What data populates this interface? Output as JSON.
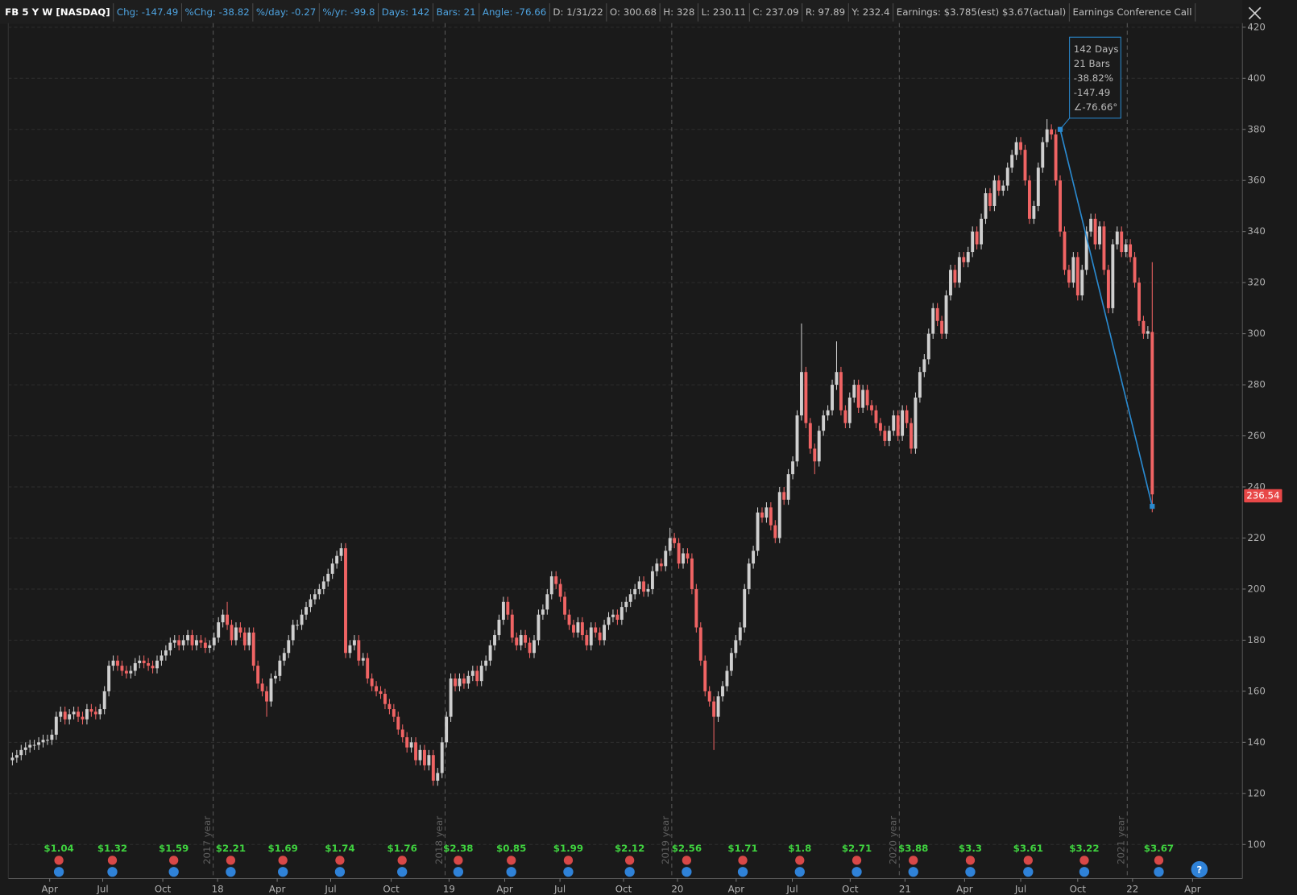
{
  "header": {
    "symbol": "FB 5 Y W [NASDAQ]",
    "study_items": [
      "Chg: -147.49",
      "%Chg: -38.82",
      "%/day: -0.27",
      "%/yr: -99.8",
      "Days: 142",
      "Bars: 21",
      "Angle: -76.66"
    ],
    "bar_items": [
      "D: 1/31/22",
      "O: 300.68",
      "H: 328",
      "L: 230.11",
      "C: 237.09",
      "R: 97.89",
      "Y: 232.4",
      "Earnings: $3.785(est) $3.67(actual)",
      "Earnings Conference Call"
    ]
  },
  "help_button": "?",
  "chart_data": {
    "type": "candlestick",
    "up_color": "#cfcfcf",
    "down_color": "#f06464",
    "grid": true,
    "ylim": [
      86.7,
      421.6
    ],
    "yticks": [
      100,
      120,
      140,
      160,
      180,
      200,
      220,
      240,
      260,
      280,
      300,
      320,
      340,
      360,
      380,
      400,
      420
    ],
    "xlim": [
      -1,
      281
    ],
    "xticks": [
      {
        "value": 8.5,
        "label": "Apr"
      },
      {
        "value": 20.6,
        "label": "Jul"
      },
      {
        "value": 34.3,
        "label": "Oct"
      },
      {
        "value": 46.8,
        "label": "18"
      },
      {
        "value": 60.4,
        "label": "Apr"
      },
      {
        "value": 72.6,
        "label": "Jul"
      },
      {
        "value": 86.4,
        "label": "Oct"
      },
      {
        "value": 99.6,
        "label": "19"
      },
      {
        "value": 112.3,
        "label": "Apr"
      },
      {
        "value": 124.9,
        "label": "Jul"
      },
      {
        "value": 139.4,
        "label": "Oct"
      },
      {
        "value": 151.7,
        "label": "20"
      },
      {
        "value": 165.1,
        "label": "Apr"
      },
      {
        "value": 177.9,
        "label": "Jul"
      },
      {
        "value": 191.1,
        "label": "Oct"
      },
      {
        "value": 203.6,
        "label": "21"
      },
      {
        "value": 217.2,
        "label": "Apr"
      },
      {
        "value": 230,
        "label": "Jul"
      },
      {
        "value": 243,
        "label": "Oct"
      },
      {
        "value": 255.5,
        "label": "22"
      },
      {
        "value": 269.2,
        "label": "Apr"
      }
    ],
    "separators": [
      {
        "value": 45.8,
        "label": "2017 year"
      },
      {
        "value": 98.7,
        "label": "2018 year"
      },
      {
        "value": 150.4,
        "label": "2019 year"
      },
      {
        "value": 202.3,
        "label": "2020 year"
      },
      {
        "value": 254.3,
        "label": "2021 year"
      }
    ],
    "open": [
      133,
      134,
      135,
      137,
      138,
      139,
      139,
      140,
      141,
      141,
      143,
      150,
      152,
      149,
      151,
      152,
      150,
      149,
      153,
      152,
      151,
      153,
      160,
      170,
      172,
      170,
      168,
      167,
      168,
      171,
      172,
      171,
      170,
      169,
      172,
      174,
      176,
      179,
      180,
      178,
      180,
      182,
      178,
      180,
      179,
      177,
      178,
      181,
      187,
      190,
      186,
      180,
      185,
      183,
      178,
      183,
      170,
      163,
      160,
      156,
      165,
      166,
      172,
      175,
      180,
      186,
      186,
      190,
      193,
      196,
      198,
      200,
      203,
      206,
      210,
      213,
      216,
      175,
      178,
      180,
      172,
      173,
      165,
      162,
      160,
      159,
      155,
      153,
      150,
      145,
      142,
      138,
      140,
      133,
      137,
      131,
      135,
      125,
      128,
      140,
      150,
      165,
      162,
      165,
      163,
      166,
      168,
      164,
      170,
      172,
      178,
      182,
      188,
      195,
      190,
      181,
      178,
      182,
      179,
      175,
      180,
      190,
      192,
      198,
      205,
      202,
      197,
      190,
      186,
      183,
      187,
      182,
      178,
      185,
      183,
      180,
      186,
      189,
      190,
      188,
      193,
      195,
      198,
      200,
      203,
      199,
      200,
      207,
      210,
      209,
      215,
      220,
      218,
      210,
      214,
      212,
      200,
      185,
      172,
      160,
      156,
      150,
      158,
      162,
      168,
      175,
      180,
      185,
      200,
      210,
      215,
      230,
      228,
      232,
      225,
      220,
      238,
      235,
      245,
      250,
      268,
      285,
      265,
      255,
      250,
      262,
      268,
      270,
      280,
      285,
      270,
      265,
      275,
      280,
      271,
      278,
      272,
      270,
      265,
      262,
      258,
      262,
      268,
      260,
      270,
      265,
      255,
      275,
      285,
      290,
      300,
      310,
      305,
      300,
      315,
      325,
      320,
      330,
      328,
      332,
      340,
      335,
      345,
      355,
      350,
      360,
      356,
      358,
      365,
      370,
      375,
      372,
      360,
      345,
      350,
      365,
      375,
      380,
      378,
      360,
      340,
      325,
      320,
      330,
      315,
      325,
      340,
      345,
      335,
      342,
      325,
      310,
      335,
      340,
      332,
      335,
      330,
      320,
      305,
      300,
      300.68
    ],
    "high": [
      136,
      137,
      139,
      140,
      141,
      141,
      142,
      143,
      143,
      145,
      152,
      154,
      154,
      153,
      154,
      154,
      152,
      155,
      155,
      154,
      155,
      162,
      172,
      174,
      174,
      172,
      170,
      170,
      173,
      174,
      174,
      173,
      172,
      174,
      176,
      178,
      181,
      182,
      182,
      182,
      184,
      184,
      182,
      182,
      181,
      180,
      183,
      189,
      192,
      195,
      188,
      187,
      187,
      185,
      185,
      185,
      172,
      165,
      162,
      167,
      168,
      174,
      177,
      182,
      188,
      188,
      192,
      195,
      198,
      200,
      202,
      205,
      208,
      212,
      215,
      218,
      218,
      180,
      182,
      182,
      175,
      175,
      167,
      164,
      162,
      161,
      157,
      155,
      152,
      147,
      144,
      142,
      142,
      139,
      139,
      137,
      137,
      130,
      142,
      152,
      167,
      167,
      167,
      167,
      168,
      170,
      170,
      172,
      174,
      180,
      184,
      190,
      197,
      197,
      192,
      183,
      184,
      184,
      181,
      182,
      192,
      194,
      200,
      207,
      207,
      204,
      199,
      192,
      188,
      189,
      189,
      184,
      187,
      187,
      185,
      188,
      191,
      192,
      192,
      195,
      197,
      200,
      202,
      205,
      205,
      202,
      209,
      212,
      212,
      217,
      224,
      222,
      220,
      216,
      216,
      214,
      202,
      187,
      174,
      162,
      158,
      160,
      164,
      170,
      177,
      182,
      187,
      202,
      212,
      217,
      232,
      232,
      234,
      234,
      227,
      240,
      240,
      247,
      252,
      270,
      304,
      287,
      267,
      257,
      264,
      270,
      272,
      282,
      297,
      287,
      272,
      277,
      282,
      282,
      280,
      280,
      274,
      272,
      267,
      264,
      264,
      270,
      270,
      272,
      272,
      267,
      277,
      287,
      292,
      302,
      312,
      312,
      307,
      317,
      327,
      327,
      332,
      332,
      334,
      342,
      342,
      347,
      357,
      357,
      362,
      362,
      360,
      367,
      372,
      377,
      377,
      374,
      362,
      352,
      367,
      377,
      384,
      382,
      380,
      362,
      342,
      327,
      332,
      332,
      327,
      342,
      347,
      347,
      344,
      344,
      327,
      337,
      342,
      342,
      337,
      337,
      332,
      322,
      307,
      303,
      328
    ],
    "low": [
      131,
      132,
      133,
      135,
      136,
      137,
      137,
      138,
      139,
      139,
      141,
      148,
      147,
      147,
      149,
      148,
      147,
      147,
      150,
      149,
      149,
      151,
      158,
      168,
      168,
      166,
      165,
      165,
      166,
      169,
      169,
      168,
      167,
      167,
      170,
      172,
      174,
      177,
      176,
      176,
      178,
      176,
      176,
      177,
      175,
      175,
      176,
      179,
      185,
      184,
      178,
      178,
      181,
      176,
      176,
      168,
      161,
      158,
      150,
      154,
      163,
      164,
      170,
      173,
      178,
      184,
      184,
      188,
      191,
      194,
      196,
      198,
      201,
      204,
      208,
      211,
      173,
      173,
      176,
      170,
      170,
      163,
      160,
      158,
      157,
      153,
      151,
      148,
      143,
      140,
      136,
      136,
      131,
      131,
      129,
      129,
      123,
      123,
      126,
      138,
      148,
      160,
      160,
      161,
      161,
      164,
      162,
      162,
      168,
      170,
      176,
      180,
      186,
      188,
      179,
      176,
      176,
      177,
      173,
      173,
      178,
      188,
      190,
      196,
      200,
      195,
      188,
      184,
      181,
      181,
      180,
      176,
      176,
      181,
      178,
      178,
      184,
      187,
      186,
      186,
      191,
      193,
      196,
      198,
      197,
      197,
      198,
      205,
      207,
      207,
      213,
      216,
      208,
      208,
      210,
      198,
      183,
      170,
      158,
      154,
      137,
      148,
      156,
      160,
      166,
      173,
      178,
      183,
      198,
      208,
      213,
      226,
      226,
      223,
      218,
      218,
      233,
      233,
      243,
      248,
      266,
      263,
      253,
      245,
      248,
      260,
      266,
      268,
      278,
      268,
      263,
      263,
      273,
      269,
      269,
      270,
      268,
      263,
      260,
      256,
      256,
      260,
      258,
      258,
      263,
      253,
      253,
      273,
      283,
      288,
      298,
      303,
      298,
      298,
      313,
      318,
      318,
      326,
      326,
      330,
      333,
      333,
      343,
      348,
      348,
      354,
      354,
      356,
      363,
      368,
      370,
      358,
      343,
      343,
      348,
      363,
      373,
      376,
      358,
      338,
      323,
      318,
      318,
      313,
      313,
      323,
      338,
      333,
      333,
      323,
      308,
      308,
      333,
      330,
      330,
      328,
      318,
      303,
      298,
      298,
      230.11
    ],
    "close": [
      134,
      135,
      137,
      138,
      139,
      139,
      140,
      141,
      141,
      143,
      150,
      152,
      149,
      151,
      152,
      150,
      149,
      153,
      152,
      151,
      153,
      160,
      170,
      172,
      170,
      168,
      167,
      168,
      171,
      172,
      171,
      170,
      169,
      172,
      174,
      176,
      179,
      180,
      178,
      180,
      182,
      178,
      180,
      179,
      177,
      178,
      181,
      187,
      190,
      186,
      180,
      185,
      183,
      178,
      183,
      170,
      163,
      160,
      156,
      165,
      166,
      172,
      175,
      180,
      186,
      186,
      190,
      193,
      196,
      198,
      200,
      203,
      206,
      210,
      213,
      216,
      175,
      178,
      180,
      172,
      173,
      165,
      162,
      160,
      159,
      155,
      153,
      150,
      145,
      142,
      138,
      140,
      133,
      137,
      131,
      135,
      125,
      128,
      140,
      150,
      165,
      162,
      165,
      163,
      166,
      168,
      164,
      170,
      172,
      178,
      182,
      188,
      195,
      190,
      181,
      178,
      182,
      179,
      175,
      180,
      190,
      192,
      198,
      205,
      202,
      197,
      190,
      186,
      183,
      187,
      182,
      178,
      185,
      183,
      180,
      186,
      189,
      190,
      188,
      193,
      195,
      198,
      200,
      203,
      199,
      200,
      207,
      210,
      209,
      215,
      220,
      218,
      210,
      214,
      212,
      200,
      185,
      172,
      160,
      156,
      150,
      158,
      162,
      168,
      175,
      180,
      185,
      200,
      210,
      215,
      230,
      228,
      232,
      225,
      220,
      238,
      235,
      245,
      250,
      268,
      285,
      265,
      255,
      250,
      262,
      268,
      270,
      280,
      285,
      270,
      265,
      275,
      280,
      271,
      278,
      272,
      270,
      265,
      262,
      258,
      262,
      268,
      260,
      270,
      265,
      255,
      275,
      285,
      290,
      300,
      310,
      305,
      300,
      315,
      325,
      320,
      330,
      328,
      332,
      340,
      335,
      345,
      355,
      350,
      360,
      356,
      358,
      365,
      370,
      375,
      372,
      360,
      345,
      350,
      365,
      375,
      380,
      378,
      360,
      340,
      325,
      320,
      330,
      315,
      325,
      340,
      345,
      335,
      342,
      325,
      310,
      335,
      340,
      332,
      335,
      330,
      320,
      305,
      300,
      301,
      237.09
    ],
    "last_price": 236.54,
    "last_price_color": "#e84848",
    "trendline": {
      "color": "#2a8ad0",
      "x": [
        239,
        260
      ],
      "y": [
        380,
        232.4
      ]
    },
    "annotation": [
      "142 Days",
      "21 Bars",
      "-38.82%",
      "-147.49",
      "∠-76.66°"
    ],
    "earnings": {
      "color": "#3fd23f",
      "x": [
        10.6,
        22.8,
        36.8,
        49.8,
        61.7,
        74.7,
        88.9,
        101.7,
        113.8,
        126.8,
        140.8,
        153.8,
        166.6,
        179.6,
        192.6,
        205.5,
        218.5,
        231.7,
        244.5,
        261.5
      ],
      "values": [
        1.04,
        1.32,
        1.59,
        2.21,
        1.69,
        1.74,
        1.76,
        2.38,
        0.85,
        1.99,
        2.12,
        2.56,
        1.71,
        1.8,
        2.71,
        3.88,
        3.3,
        3.61,
        3.22,
        3.67
      ],
      "value_labels": [
        "$1.04",
        "$1.32",
        "$1.59",
        "$2.21",
        "$1.69",
        "$1.74",
        "$1.76",
        "$2.38",
        "$0.85",
        "$1.99",
        "$2.12",
        "$2.56",
        "$1.71",
        "$1.8",
        "$2.71",
        "$3.88",
        "$3.3",
        "$3.61",
        "$3.22",
        "$3.67"
      ]
    }
  }
}
